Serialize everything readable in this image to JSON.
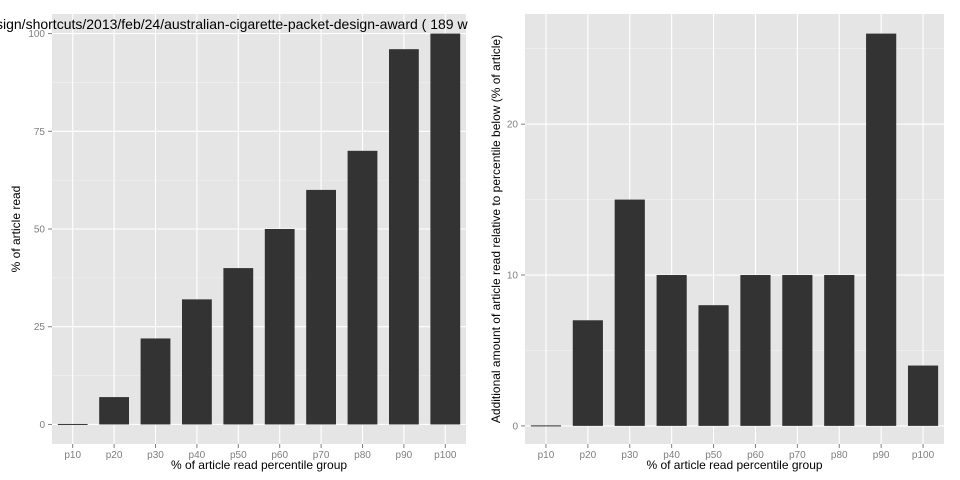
{
  "chart_data": [
    {
      "type": "bar",
      "title": "sign/shortcuts/2013/feb/24/australian-cigarette-packet-design-award ( 189 w",
      "xlabel": "% of article read percentile group",
      "ylabel": "% of article read",
      "categories": [
        "p10",
        "p20",
        "p30",
        "p40",
        "p50",
        "p60",
        "p70",
        "p80",
        "p90",
        "p100"
      ],
      "values": [
        0,
        7,
        22,
        32,
        40,
        50,
        60,
        70,
        96,
        100
      ],
      "yticks": [
        0,
        25,
        50,
        75,
        100
      ],
      "ylim": [
        -5,
        105
      ],
      "bar_color": "#333333",
      "panel_bg": "#e5e5e5",
      "grid": true
    },
    {
      "type": "bar",
      "title": "",
      "xlabel": "% of article read percentile group",
      "ylabel": "Additional amount of article read relative to percentile below (% of article)",
      "categories": [
        "p10",
        "p20",
        "p30",
        "p40",
        "p50",
        "p60",
        "p70",
        "p80",
        "p90",
        "p100"
      ],
      "values": [
        0,
        7,
        15,
        10,
        8,
        10,
        10,
        10,
        26,
        4
      ],
      "yticks": [
        0,
        10,
        20
      ],
      "ylim": [
        -1.2,
        27.3
      ],
      "bar_color": "#333333",
      "panel_bg": "#e5e5e5",
      "grid": true
    }
  ]
}
